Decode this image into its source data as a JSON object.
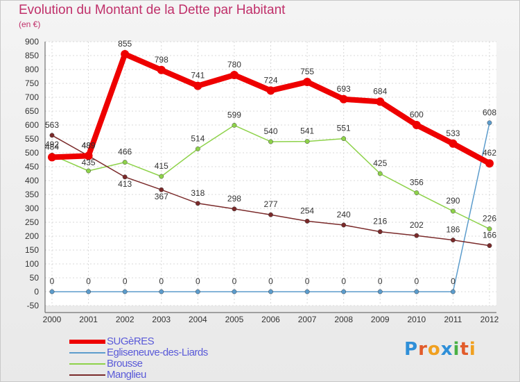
{
  "title": "Evolution du Montant de la Dette par Habitant",
  "unit": "(en €)",
  "logo": {
    "text": "Proxiti",
    "letter_colors": [
      "#2f8fd8",
      "#e25b2a",
      "#f0a020",
      "#2f8fd8",
      "#49b045",
      "#e25b2a",
      "#f0a020"
    ]
  },
  "chart_data": {
    "type": "line",
    "x": [
      "2000",
      "2001",
      "2002",
      "2003",
      "2004",
      "2005",
      "2006",
      "2007",
      "2008",
      "2009",
      "2010",
      "2011",
      "2012"
    ],
    "ylim": [
      -50,
      900
    ],
    "yticks": [
      -50,
      0,
      50,
      100,
      150,
      200,
      250,
      300,
      350,
      400,
      450,
      500,
      550,
      600,
      650,
      700,
      750,
      800,
      850,
      900
    ],
    "grid": true,
    "legend_position": "bottom-left",
    "series": [
      {
        "name": "SUGèRES",
        "color": "#ee0000",
        "values": [
          484,
          489,
          855,
          798,
          741,
          780,
          724,
          755,
          693,
          684,
          600,
          533,
          462
        ]
      },
      {
        "name": "Egliseneuve-des-Liards",
        "color": "#5c9ccc",
        "values": [
          0,
          0,
          0,
          0,
          0,
          0,
          0,
          0,
          0,
          0,
          0,
          0,
          608
        ]
      },
      {
        "name": "Brousse",
        "color": "#8ed24a",
        "values": [
          492,
          435,
          466,
          415,
          514,
          599,
          540,
          541,
          551,
          425,
          356,
          290,
          226
        ]
      },
      {
        "name": "Manglieu",
        "color": "#7a2a2a",
        "values": [
          563,
          489,
          413,
          367,
          318,
          298,
          277,
          254,
          240,
          216,
          202,
          186,
          166
        ]
      }
    ]
  }
}
